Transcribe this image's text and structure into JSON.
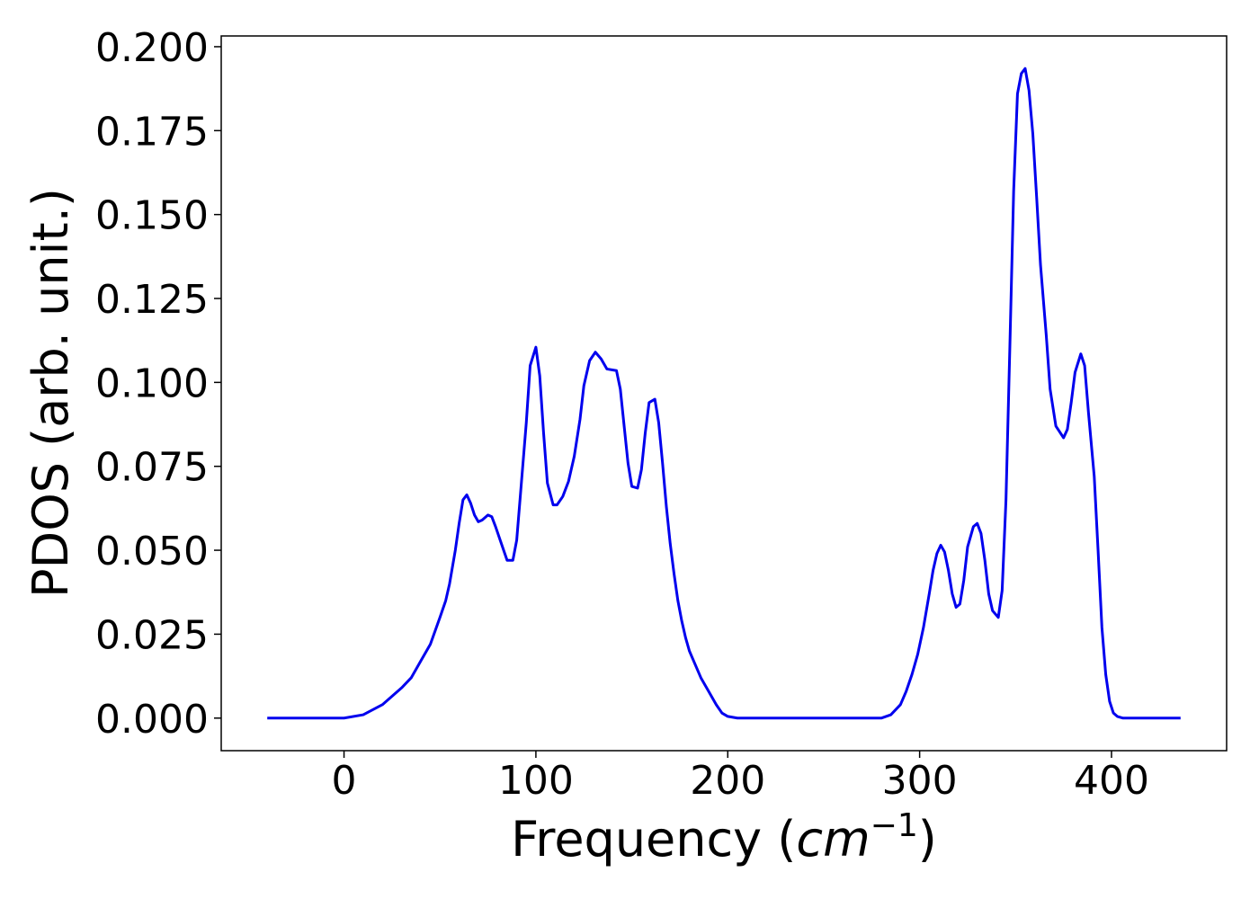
{
  "chart_data": {
    "type": "line",
    "xlabel": [
      "Frequency (",
      "cm",
      "−1",
      ")"
    ],
    "ylabel": "PDOS (arb. unit.)",
    "x": [
      -40,
      -30,
      -20,
      -10,
      0,
      10,
      20,
      30,
      35,
      40,
      45,
      50,
      53,
      55,
      58,
      60,
      62,
      64,
      66,
      68,
      70,
      72,
      75,
      77,
      79,
      82,
      85,
      88,
      90,
      92,
      95,
      97,
      100,
      102,
      104,
      106,
      109,
      111,
      114,
      117,
      120,
      123,
      125,
      128,
      131,
      134,
      137,
      142,
      144,
      146,
      148,
      150,
      153,
      155,
      157,
      159,
      162,
      164,
      166,
      168,
      170,
      172,
      174,
      176,
      178,
      180,
      183,
      186,
      190,
      194,
      197,
      200,
      205,
      240,
      280,
      285,
      290,
      293,
      296,
      299,
      302,
      305,
      307,
      309,
      311,
      313,
      315,
      317,
      319,
      321,
      323,
      325,
      328,
      330,
      332,
      334,
      336,
      338,
      341,
      343,
      345,
      347,
      349,
      351,
      353,
      355,
      357,
      359,
      361,
      363,
      366,
      368,
      371,
      375,
      377,
      379,
      381,
      384,
      386,
      388,
      391,
      393,
      395,
      397,
      399,
      401,
      403,
      406,
      436
    ],
    "series": [
      {
        "color": "#0000ee",
        "values": [
          0,
          0,
          0,
          0,
          0,
          0.001,
          0.004,
          0.009,
          0.012,
          0.017,
          0.022,
          0.03,
          0.035,
          0.04,
          0.05,
          0.058,
          0.065,
          0.0665,
          0.064,
          0.0605,
          0.0585,
          0.059,
          0.0605,
          0.06,
          0.057,
          0.052,
          0.047,
          0.047,
          0.053,
          0.067,
          0.088,
          0.105,
          0.1105,
          0.102,
          0.085,
          0.07,
          0.0635,
          0.0635,
          0.066,
          0.0705,
          0.078,
          0.089,
          0.099,
          0.1065,
          0.109,
          0.107,
          0.104,
          0.1035,
          0.098,
          0.087,
          0.076,
          0.069,
          0.0685,
          0.074,
          0.085,
          0.094,
          0.095,
          0.088,
          0.076,
          0.063,
          0.052,
          0.043,
          0.035,
          0.029,
          0.024,
          0.02,
          0.016,
          0.012,
          0.008,
          0.004,
          0.0015,
          0.0005,
          0,
          0,
          0,
          0.001,
          0.004,
          0.008,
          0.013,
          0.019,
          0.027,
          0.037,
          0.044,
          0.049,
          0.0515,
          0.0495,
          0.044,
          0.037,
          0.033,
          0.034,
          0.041,
          0.051,
          0.057,
          0.058,
          0.055,
          0.047,
          0.037,
          0.032,
          0.03,
          0.038,
          0.065,
          0.11,
          0.157,
          0.186,
          0.192,
          0.1935,
          0.187,
          0.174,
          0.155,
          0.135,
          0.114,
          0.098,
          0.087,
          0.0835,
          0.086,
          0.094,
          0.103,
          0.1085,
          0.105,
          0.091,
          0.072,
          0.05,
          0.027,
          0.013,
          0.005,
          0.0015,
          0.0005,
          0,
          0
        ]
      }
    ],
    "xlim": [
      -64,
      460
    ],
    "ylim": [
      -0.0097,
      0.2032
    ],
    "xticks": [
      0,
      100,
      200,
      300,
      400
    ],
    "yticks": [
      {
        "value": 0,
        "label": "0.000"
      },
      {
        "value": 0.025,
        "label": "0.025"
      },
      {
        "value": 0.05,
        "label": "0.050"
      },
      {
        "value": 0.075,
        "label": "0.075"
      },
      {
        "value": 0.1,
        "label": "0.100"
      },
      {
        "value": 0.125,
        "label": "0.125"
      },
      {
        "value": 0.15,
        "label": "0.150"
      },
      {
        "value": 0.175,
        "label": "0.175"
      },
      {
        "value": 0.2,
        "label": "0.200"
      }
    ],
    "grid": false
  }
}
